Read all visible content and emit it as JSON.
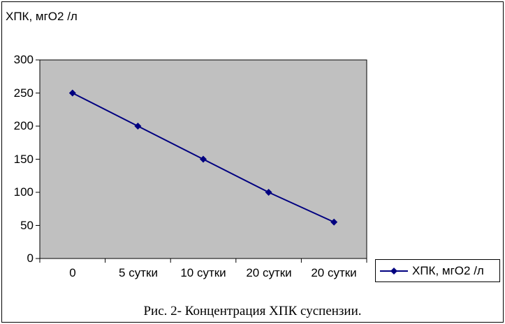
{
  "caption": "Рис. 2- Концентрация ХПК суспензии.",
  "chart_data": {
    "type": "line",
    "title": "ХПК, мгО2 /л",
    "categories": [
      "0",
      "5 сутки",
      "10 сутки",
      "20 сутки",
      "20 сутки"
    ],
    "series": [
      {
        "name": "ХПК, мгО2 /л",
        "values": [
          250,
          200,
          150,
          100,
          55
        ]
      }
    ],
    "xlabel": "",
    "ylabel": "",
    "ylim": [
      0,
      300
    ],
    "ytick_step": 50,
    "ytick_labels": [
      "300",
      "250",
      "200",
      "150",
      "100",
      "50",
      "0"
    ],
    "grid": false,
    "legend_position": "bottom-right",
    "plot_bg": "#c0c0c0",
    "line_color": "#000080",
    "marker": "diamond",
    "text_color": "#000000"
  }
}
